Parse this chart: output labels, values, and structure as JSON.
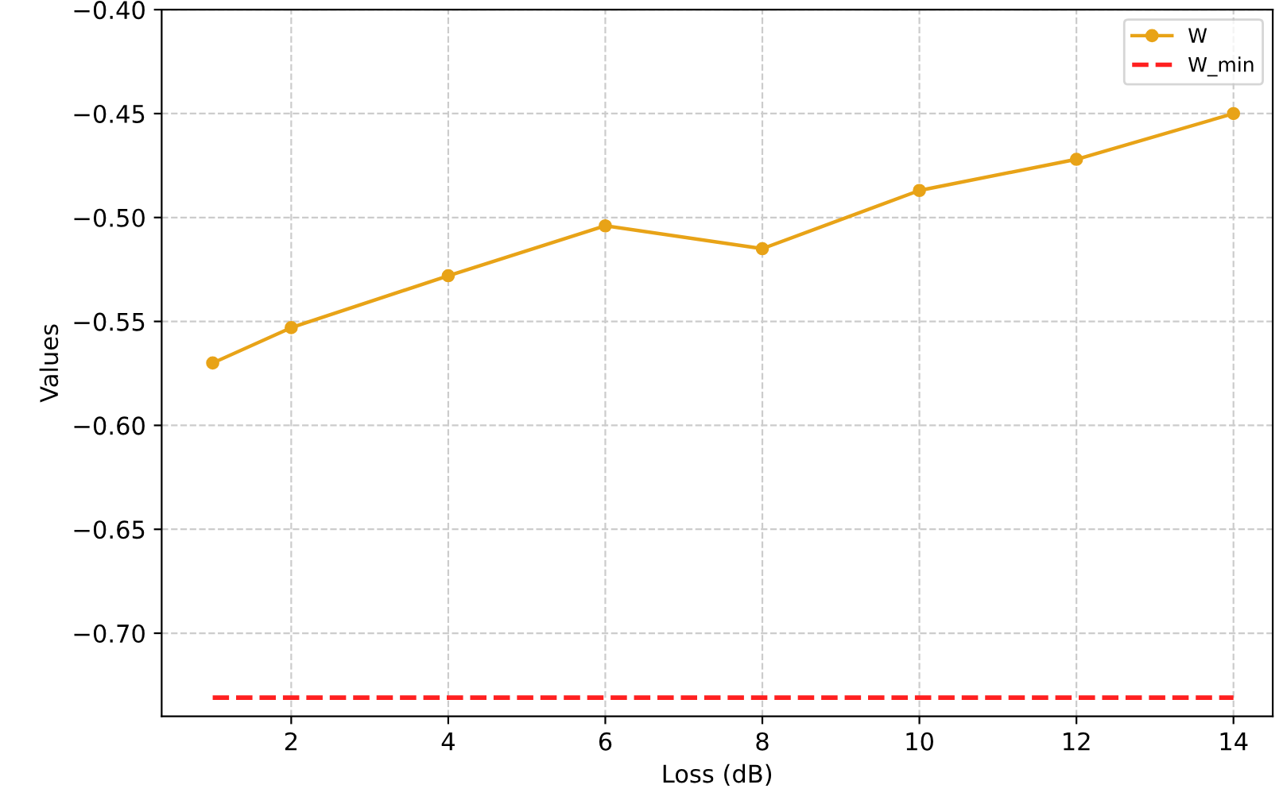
{
  "chart_data": {
    "type": "line",
    "xlabel": "Loss (dB)",
    "ylabel": "Values",
    "x": [
      1,
      2,
      4,
      6,
      8,
      10,
      12,
      14
    ],
    "series": [
      {
        "name": "W",
        "color": "#e8a317",
        "marker": "circle",
        "line_style": "solid",
        "values": [
          -0.57,
          -0.553,
          -0.528,
          -0.504,
          -0.515,
          -0.487,
          -0.472,
          -0.45
        ]
      },
      {
        "name": "W_min",
        "color": "#ff2020",
        "marker": "none",
        "line_style": "dashed",
        "values": [
          -0.731,
          -0.731,
          -0.731,
          -0.731,
          -0.731,
          -0.731,
          -0.731,
          -0.731
        ]
      }
    ],
    "xlim": [
      0.35,
      14.5
    ],
    "ylim": [
      -0.74,
      -0.4
    ],
    "xticks": [
      2,
      4,
      6,
      8,
      10,
      12,
      14
    ],
    "yticks": [
      {
        "value": -0.7,
        "label": "−0.70"
      },
      {
        "value": -0.65,
        "label": "−0.65"
      },
      {
        "value": -0.6,
        "label": "−0.60"
      },
      {
        "value": -0.55,
        "label": "−0.55"
      },
      {
        "value": -0.5,
        "label": "−0.50"
      },
      {
        "value": -0.45,
        "label": "−0.45"
      },
      {
        "value": -0.4,
        "label": "−0.40"
      }
    ],
    "grid": true,
    "legend": "top right"
  }
}
